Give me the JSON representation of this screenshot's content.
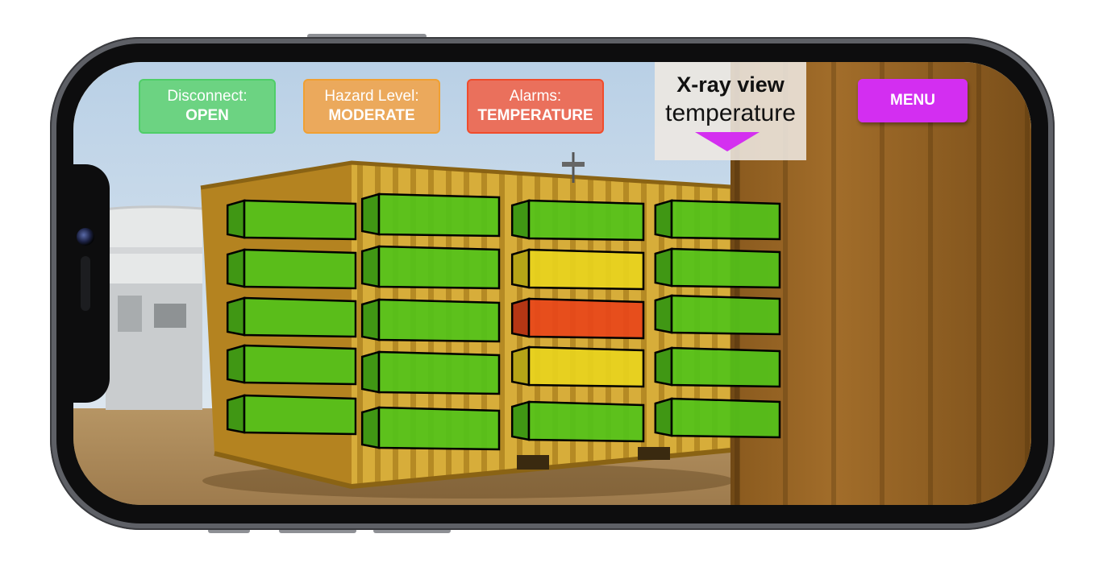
{
  "hud": {
    "disconnect": {
      "label": "Disconnect:",
      "value": "OPEN",
      "color": "#6cd382"
    },
    "hazard": {
      "label": "Hazard Level:",
      "value": "MODERATE",
      "color": "#eba95c"
    },
    "alarms": {
      "label": "Alarms:",
      "value": "TEMPERATURE",
      "color": "#ea705c"
    }
  },
  "xray": {
    "title": "X-ray view",
    "mode": "temperature",
    "caret_color": "#d42ff0"
  },
  "menu": {
    "label": "MENU",
    "color": "#d32ef1"
  },
  "battery_overlay": {
    "color_scale": {
      "normal": "#52c21a",
      "elevated": "#e8d21e",
      "alarm": "#e8451a"
    },
    "columns": [
      {
        "modules": [
          "normal",
          "normal",
          "normal",
          "normal",
          "normal"
        ]
      },
      {
        "modules": [
          "normal",
          "normal",
          "normal",
          "normal",
          "normal"
        ]
      },
      {
        "modules": [
          "normal",
          "elevated",
          "alarm",
          "elevated",
          "normal"
        ]
      },
      {
        "modules": [
          "normal",
          "normal",
          "normal",
          "normal",
          "normal"
        ]
      }
    ]
  }
}
